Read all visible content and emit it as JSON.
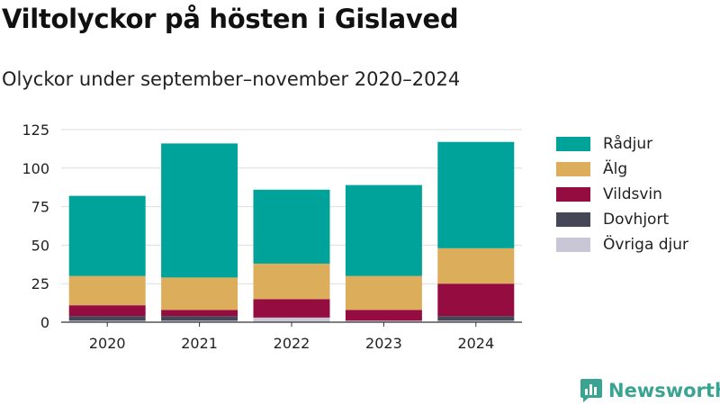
{
  "header": {
    "title": "Viltolyckor på hösten i Gislaved",
    "subtitle": "Olyckor under september–november 2020–2024"
  },
  "brand": {
    "name": "Newsworthy",
    "icon": "newsworthy-logo-icon",
    "color": "#3aa391"
  },
  "chart_data": {
    "type": "bar",
    "stacked": true,
    "categories": [
      "2020",
      "2021",
      "2022",
      "2023",
      "2024"
    ],
    "series": [
      {
        "name": "Övriga djur",
        "color": "#c9c7d6",
        "values": [
          1,
          1,
          3,
          1,
          1
        ]
      },
      {
        "name": "Dovhjort",
        "color": "#454656",
        "values": [
          3,
          3,
          0,
          0,
          3
        ]
      },
      {
        "name": "Vildsvin",
        "color": "#950d40",
        "values": [
          7,
          4,
          12,
          7,
          21
        ]
      },
      {
        "name": "Älg",
        "color": "#dcad5b",
        "values": [
          19,
          21,
          23,
          22,
          23
        ]
      },
      {
        "name": "Rådjur",
        "color": "#00a39a",
        "values": [
          52,
          87,
          48,
          59,
          69
        ]
      }
    ],
    "legend_order": [
      "Rådjur",
      "Älg",
      "Vildsvin",
      "Dovhjort",
      "Övriga djur"
    ],
    "ylim": [
      0,
      125
    ],
    "yticks": [
      "0",
      "25",
      "50",
      "75",
      "100",
      "125"
    ],
    "xlabel": "",
    "ylabel": "",
    "grid": true,
    "legend_position": "right"
  }
}
